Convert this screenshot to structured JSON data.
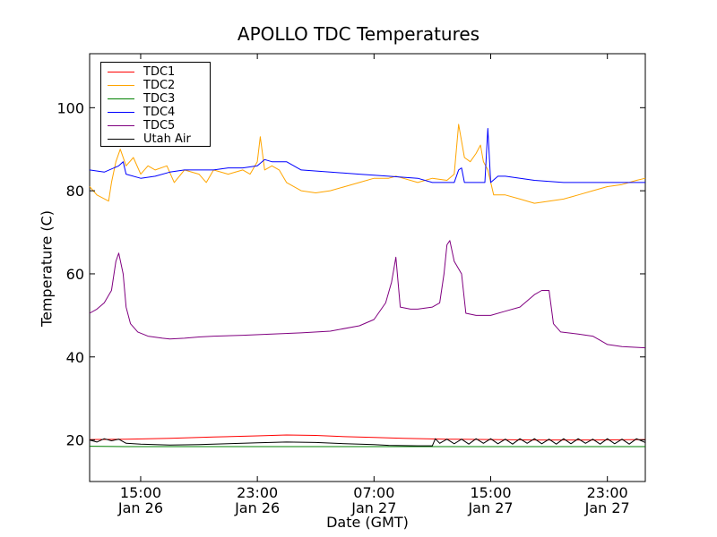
{
  "chart_data": {
    "type": "line",
    "title": "APOLLO TDC Temperatures",
    "xlabel": "Date (GMT)",
    "ylabel": "Temperature (C)",
    "x_unit": "hours",
    "xlim": [
      9.5,
      47.6
    ],
    "ylim": [
      10,
      113
    ],
    "yticks": [
      20,
      40,
      60,
      80,
      100
    ],
    "xticks": [
      {
        "time": "15:00",
        "date": "Jan 26",
        "x": 13
      },
      {
        "time": "23:00",
        "date": "Jan 26",
        "x": 21
      },
      {
        "time": "07:00",
        "date": "Jan 27",
        "x": 29
      },
      {
        "time": "15:00",
        "date": "Jan 27",
        "x": 37
      },
      {
        "time": "23:00",
        "date": "Jan 27",
        "x": 45
      }
    ],
    "legend_position": "top-left",
    "series": [
      {
        "name": "TDC1",
        "color": "#ff0000",
        "points": [
          [
            9.5,
            20.1
          ],
          [
            12,
            20.2
          ],
          [
            15,
            20.4
          ],
          [
            18,
            20.7
          ],
          [
            21,
            21.0
          ],
          [
            23,
            21.2
          ],
          [
            25,
            21.1
          ],
          [
            27,
            20.8
          ],
          [
            29,
            20.6
          ],
          [
            31,
            20.4
          ],
          [
            34,
            20.2
          ],
          [
            37,
            20.1
          ],
          [
            40,
            20.0
          ],
          [
            44,
            20.0
          ],
          [
            47.6,
            20.1
          ]
        ]
      },
      {
        "name": "TDC2",
        "color": "#ffa500",
        "points": [
          [
            9.5,
            81
          ],
          [
            10,
            79
          ],
          [
            10.8,
            77.5
          ],
          [
            11,
            82
          ],
          [
            11.3,
            87
          ],
          [
            11.6,
            90
          ],
          [
            12,
            86
          ],
          [
            12.5,
            88
          ],
          [
            13,
            84
          ],
          [
            13.5,
            86
          ],
          [
            14,
            85
          ],
          [
            14.8,
            86
          ],
          [
            15.3,
            82
          ],
          [
            16,
            85
          ],
          [
            17,
            84
          ],
          [
            17.5,
            82
          ],
          [
            18,
            85
          ],
          [
            19,
            84
          ],
          [
            20,
            85
          ],
          [
            20.5,
            84
          ],
          [
            21,
            87
          ],
          [
            21.2,
            93
          ],
          [
            21.5,
            85
          ],
          [
            22,
            86
          ],
          [
            22.5,
            85
          ],
          [
            23,
            82
          ],
          [
            24,
            80
          ],
          [
            25,
            79.5
          ],
          [
            26,
            80
          ],
          [
            27,
            81
          ],
          [
            28,
            82
          ],
          [
            29,
            83
          ],
          [
            30,
            83
          ],
          [
            30.5,
            83.5
          ],
          [
            31,
            83
          ],
          [
            32,
            82
          ],
          [
            33,
            83
          ],
          [
            34,
            82.5
          ],
          [
            34.5,
            84
          ],
          [
            34.8,
            96
          ],
          [
            35.2,
            88
          ],
          [
            35.6,
            87
          ],
          [
            36,
            89
          ],
          [
            36.3,
            91
          ],
          [
            36.5,
            87
          ],
          [
            36.8,
            85
          ],
          [
            37.2,
            79
          ],
          [
            38,
            79
          ],
          [
            39,
            78
          ],
          [
            40,
            77
          ],
          [
            41,
            77.5
          ],
          [
            42,
            78
          ],
          [
            43,
            79
          ],
          [
            44,
            80
          ],
          [
            45,
            81
          ],
          [
            46,
            81.5
          ],
          [
            47,
            82.5
          ],
          [
            47.6,
            83
          ]
        ]
      },
      {
        "name": "TDC3",
        "color": "#008000",
        "points": [
          [
            9.5,
            18.5
          ],
          [
            12,
            18.4
          ],
          [
            16,
            18.4
          ],
          [
            20,
            18.4
          ],
          [
            25,
            18.4
          ],
          [
            30,
            18.4
          ],
          [
            35,
            18.4
          ],
          [
            40,
            18.4
          ],
          [
            47.6,
            18.4
          ]
        ]
      },
      {
        "name": "TDC4",
        "color": "#0000ff",
        "points": [
          [
            9.5,
            85
          ],
          [
            10.5,
            84.5
          ],
          [
            11.5,
            86
          ],
          [
            11.8,
            87
          ],
          [
            12,
            84
          ],
          [
            13,
            83
          ],
          [
            14,
            83.5
          ],
          [
            15,
            84.5
          ],
          [
            16,
            85
          ],
          [
            17,
            85
          ],
          [
            18,
            85
          ],
          [
            19,
            85.5
          ],
          [
            20,
            85.5
          ],
          [
            21,
            86
          ],
          [
            21.5,
            87.5
          ],
          [
            22,
            87
          ],
          [
            23,
            87
          ],
          [
            24,
            85
          ],
          [
            26,
            84.5
          ],
          [
            28,
            84
          ],
          [
            30,
            83.5
          ],
          [
            32,
            83
          ],
          [
            33,
            82
          ],
          [
            34.5,
            82
          ],
          [
            34.8,
            85
          ],
          [
            35,
            85.5
          ],
          [
            35.2,
            82
          ],
          [
            36,
            82
          ],
          [
            36.6,
            82
          ],
          [
            36.8,
            95
          ],
          [
            37,
            82
          ],
          [
            37.5,
            83.5
          ],
          [
            38,
            83.5
          ],
          [
            40,
            82.5
          ],
          [
            42,
            82
          ],
          [
            44,
            82
          ],
          [
            46,
            82
          ],
          [
            47.6,
            82
          ]
        ]
      },
      {
        "name": "TDC5",
        "color": "#800080",
        "points": [
          [
            9.5,
            50.5
          ],
          [
            10,
            51.5
          ],
          [
            10.5,
            53
          ],
          [
            11,
            56
          ],
          [
            11.3,
            63
          ],
          [
            11.5,
            65
          ],
          [
            11.8,
            60
          ],
          [
            12,
            52
          ],
          [
            12.3,
            48
          ],
          [
            12.8,
            46
          ],
          [
            13.5,
            45
          ],
          [
            14.5,
            44.5
          ],
          [
            15,
            44.3
          ],
          [
            16,
            44.5
          ],
          [
            17,
            44.8
          ],
          [
            18,
            45
          ],
          [
            20,
            45.2
          ],
          [
            22,
            45.5
          ],
          [
            24,
            45.8
          ],
          [
            26,
            46.2
          ],
          [
            28,
            47.5
          ],
          [
            29,
            49
          ],
          [
            29.8,
            53
          ],
          [
            30.2,
            58
          ],
          [
            30.5,
            64
          ],
          [
            30.8,
            52
          ],
          [
            31.5,
            51.5
          ],
          [
            32,
            51.5
          ],
          [
            33,
            52
          ],
          [
            33.5,
            53
          ],
          [
            33.8,
            60
          ],
          [
            34,
            67
          ],
          [
            34.2,
            68
          ],
          [
            34.5,
            63
          ],
          [
            35,
            60
          ],
          [
            35.3,
            50.5
          ],
          [
            36,
            50
          ],
          [
            37,
            50
          ],
          [
            38,
            51
          ],
          [
            39,
            52
          ],
          [
            40,
            55
          ],
          [
            40.5,
            56
          ],
          [
            41,
            56
          ],
          [
            41.3,
            48
          ],
          [
            41.8,
            46
          ],
          [
            43,
            45.5
          ],
          [
            44,
            45
          ],
          [
            44.5,
            44
          ],
          [
            45,
            43
          ],
          [
            46,
            42.5
          ],
          [
            47.6,
            42.2
          ]
        ]
      },
      {
        "name": "Utah Air",
        "color": "#000000",
        "points": [
          [
            9.5,
            20
          ],
          [
            10,
            19.5
          ],
          [
            10.5,
            20.3
          ],
          [
            11,
            19.8
          ],
          [
            11.5,
            20.2
          ],
          [
            12,
            19.2
          ],
          [
            13,
            19
          ],
          [
            15,
            18.8
          ],
          [
            17,
            18.9
          ],
          [
            19,
            19.1
          ],
          [
            21,
            19.3
          ],
          [
            23,
            19.5
          ],
          [
            25,
            19.4
          ],
          [
            27,
            19.1
          ],
          [
            29,
            18.9
          ],
          [
            30,
            18.7
          ],
          [
            32,
            18.6
          ],
          [
            33,
            18.6
          ],
          [
            33.2,
            20.3
          ],
          [
            33.5,
            19.2
          ],
          [
            34,
            20.2
          ],
          [
            34.5,
            19.1
          ],
          [
            35,
            20.2
          ],
          [
            35.5,
            19
          ],
          [
            36,
            20.3
          ],
          [
            36.5,
            19.2
          ],
          [
            37,
            20.3
          ],
          [
            37.5,
            19.1
          ],
          [
            38,
            20.2
          ],
          [
            38.5,
            19
          ],
          [
            39,
            20.3
          ],
          [
            39.5,
            19.2
          ],
          [
            40,
            20.3
          ],
          [
            40.5,
            19.1
          ],
          [
            41,
            20.2
          ],
          [
            41.5,
            19
          ],
          [
            42,
            20.3
          ],
          [
            42.5,
            19.1
          ],
          [
            43,
            20.3
          ],
          [
            43.5,
            19.2
          ],
          [
            44,
            20.2
          ],
          [
            44.5,
            19
          ],
          [
            45,
            20.3
          ],
          [
            45.5,
            19.1
          ],
          [
            46,
            20.2
          ],
          [
            46.5,
            19
          ],
          [
            47,
            20.3
          ],
          [
            47.6,
            19.4
          ]
        ]
      }
    ]
  }
}
